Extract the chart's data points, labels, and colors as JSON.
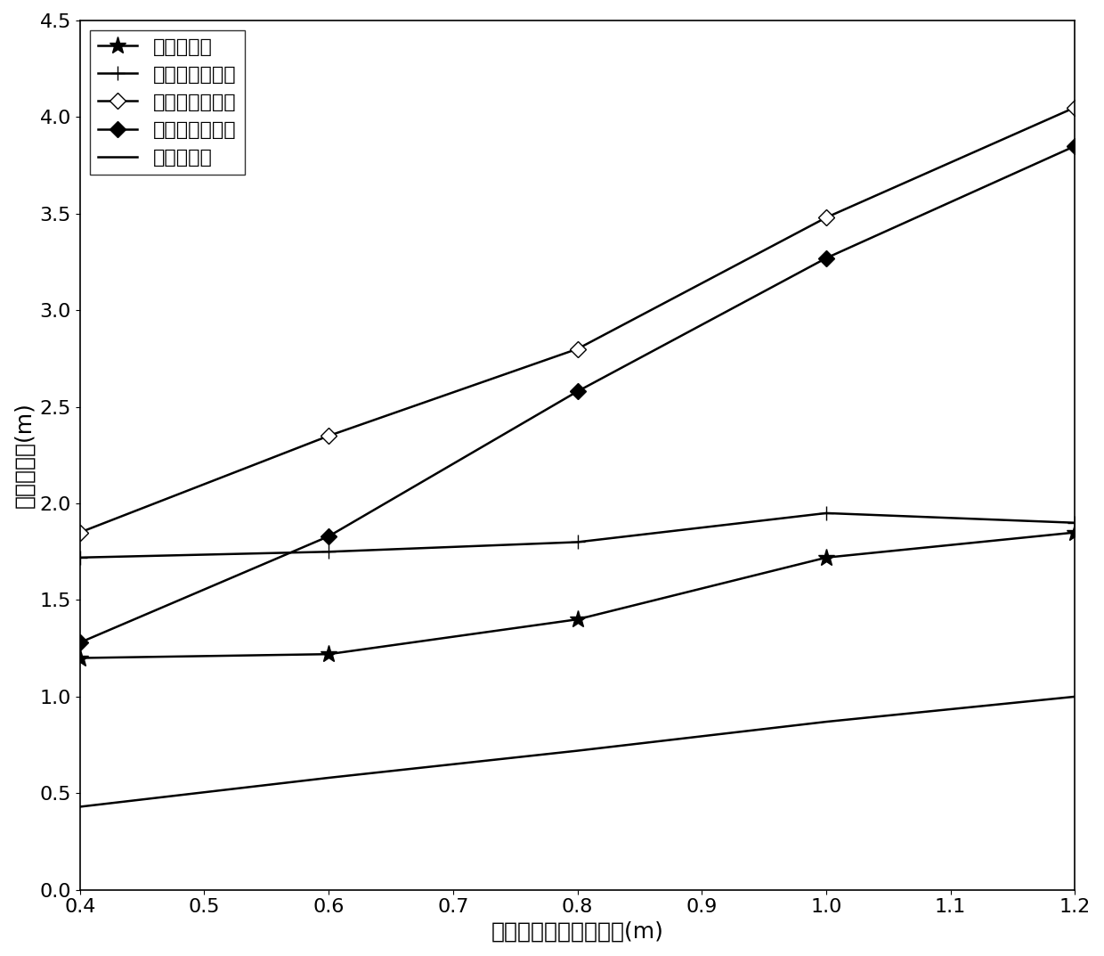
{
  "x": [
    0.4,
    0.6,
    0.8,
    1.0,
    1.2
  ],
  "series": {
    "本发明方法": {
      "y": [
        1.2,
        1.22,
        1.4,
        1.72,
        1.85
      ],
      "marker": "*",
      "markersize": 14,
      "linewidth": 1.8,
      "color": "#000000",
      "label": "本发明方法"
    },
    "第一种现有方法": {
      "y": [
        1.72,
        1.75,
        1.8,
        1.95,
        1.9
      ],
      "marker": "+",
      "markersize": 12,
      "linewidth": 1.8,
      "color": "#000000",
      "label": "第一种现有方法"
    },
    "第二种现有方法": {
      "y": [
        1.85,
        2.35,
        2.8,
        3.48,
        4.05
      ],
      "marker": "D",
      "markersize": 9,
      "markerfacecolor": "white",
      "linewidth": 1.8,
      "color": "#000000",
      "label": "第二种现有方法"
    },
    "第三种现有方法": {
      "y": [
        1.28,
        1.83,
        2.58,
        3.27,
        3.85
      ],
      "marker": "D",
      "markersize": 9,
      "markerfacecolor": "black",
      "linewidth": 1.8,
      "color": "#000000",
      "label": "第三种现有方法"
    },
    "克拉美罗界": {
      "y": [
        0.43,
        0.58,
        0.72,
        0.87,
        1.0
      ],
      "marker": null,
      "markersize": 0,
      "linewidth": 1.8,
      "color": "#000000",
      "label": "克拉美罗界"
    }
  },
  "xlabel": "传感器位置误差标准差(m)",
  "ylabel": "均方根误差(m)",
  "xlim": [
    0.4,
    1.2
  ],
  "ylim": [
    0,
    4.5
  ],
  "xticks": [
    0.4,
    0.5,
    0.6,
    0.7,
    0.8,
    0.9,
    1.0,
    1.1,
    1.2
  ],
  "yticks": [
    0,
    0.5,
    1.0,
    1.5,
    2.0,
    2.5,
    3.0,
    3.5,
    4.0,
    4.5
  ],
  "legend_loc": "upper left",
  "fontsize_label": 18,
  "fontsize_tick": 16,
  "fontsize_legend": 16,
  "background_color": "#ffffff"
}
